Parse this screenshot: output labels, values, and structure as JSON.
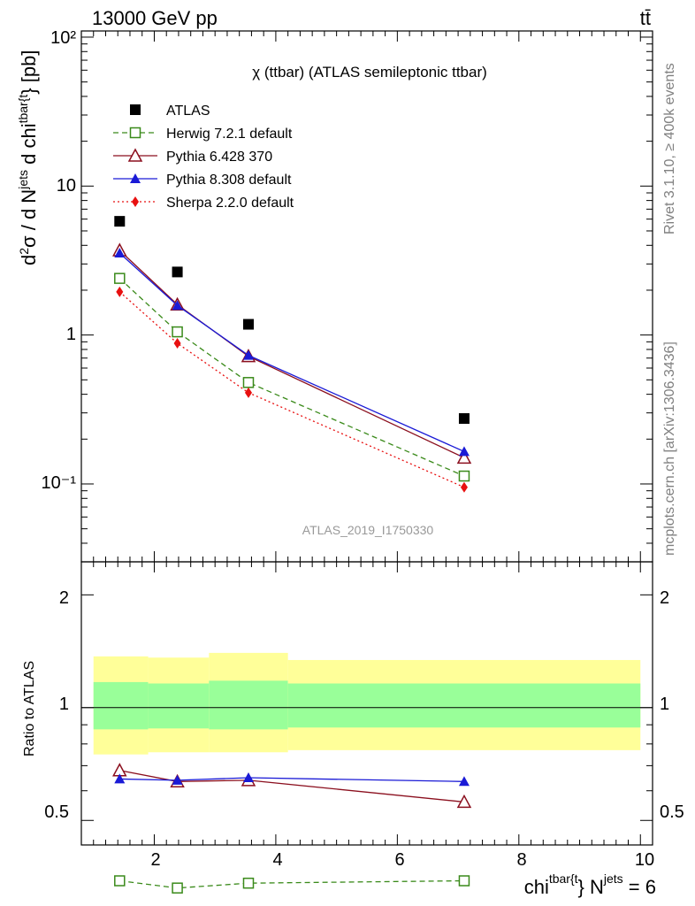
{
  "header": {
    "energy": "13000 GeV pp",
    "process": "tt̄"
  },
  "title": "χ (ttbar) (ATLAS semileptonic ttbar)",
  "watermark": "ATLAS_2019_I1750330",
  "side_labels": {
    "rivet": "Rivet 3.1.10, ≥ 400k events",
    "mcplots": "mcplots.cern.ch [arXiv:1306.3436]"
  },
  "axes": {
    "ylabel": "d²σ / d N^jets d chi^tbar{t} [pb]",
    "ylabel_parts": {
      "a": "d",
      "a_sup": "2",
      "b": "σ / d N",
      "b_sup": "jets",
      "c": " d chi",
      "c_sup": "tbar{t",
      "d": "} [pb]"
    },
    "ratio_ylabel": "Ratio to ATLAS",
    "xlabel": "chi^tbar{t} N^jets = 6",
    "xlabel_parts": {
      "a": "chi",
      "a_sup": "tbar{t",
      "b": "} N",
      "b_sup": "jets",
      "c": " = 6"
    },
    "y_tick_labels": [
      "10⁻¹",
      "1",
      "10",
      "10²"
    ],
    "ratio_tick_labels": [
      "0.5",
      "1",
      "2"
    ],
    "x_tick_labels": [
      "2",
      "4",
      "6",
      "8",
      "10"
    ]
  },
  "legend": [
    {
      "name": "ATLAS",
      "color": "#000000",
      "marker": "square-filled",
      "style": "none"
    },
    {
      "name": "Herwig 7.2.1 default",
      "color": "#3a8a1a",
      "marker": "square-open",
      "style": "dashed"
    },
    {
      "name": "Pythia 6.428 370",
      "color": "#8b0f1e",
      "marker": "triangle-open",
      "style": "solid"
    },
    {
      "name": "Pythia 8.308 default",
      "color": "#1a1ad6",
      "marker": "triangle-filled",
      "style": "solid"
    },
    {
      "name": "Sherpa 2.2.0 default",
      "color": "#e81010",
      "marker": "diamond-filled",
      "style": "dotted"
    }
  ],
  "chart_data": [
    {
      "type": "scatter",
      "panel": "main",
      "x": [
        1.43,
        2.38,
        3.55,
        7.1
      ],
      "yscale": "log",
      "ylim": [
        0.03,
        110
      ],
      "xlim": [
        0.8,
        10.2
      ],
      "series": [
        {
          "name": "ATLAS",
          "values": [
            5.8,
            2.65,
            1.18,
            0.275
          ]
        },
        {
          "name": "Herwig 7.2.1 default",
          "values": [
            2.4,
            1.05,
            0.48,
            0.113
          ]
        },
        {
          "name": "Pythia 6.428 370",
          "values": [
            3.7,
            1.6,
            0.72,
            0.15
          ]
        },
        {
          "name": "Pythia 8.308 default",
          "values": [
            3.55,
            1.58,
            0.73,
            0.165
          ]
        },
        {
          "name": "Sherpa 2.2.0 default",
          "values": [
            1.95,
            0.88,
            0.41,
            0.095
          ]
        }
      ]
    },
    {
      "type": "line",
      "panel": "ratio",
      "x": [
        1.43,
        2.38,
        3.55,
        7.1
      ],
      "yscale": "log",
      "ylim": [
        0.43,
        2.45
      ],
      "xlim": [
        0.8,
        10.2
      ],
      "bands": [
        {
          "x_edges": [
            1.0,
            1.9,
            2.9,
            4.2,
            10.0
          ],
          "yellow": [
            [
              0.75,
              1.37
            ],
            [
              0.76,
              1.36
            ],
            [
              0.76,
              1.4
            ],
            [
              0.77,
              1.34
            ]
          ],
          "green": [
            [
              0.875,
              1.17
            ],
            [
              0.88,
              1.16
            ],
            [
              0.875,
              1.18
            ],
            [
              0.885,
              1.16
            ]
          ]
        }
      ],
      "series": [
        {
          "name": "Herwig 7.2.1 default",
          "values": [
            0.345,
            0.33,
            0.34,
            0.345
          ]
        },
        {
          "name": "Pythia 6.428 370",
          "values": [
            0.68,
            0.635,
            0.64,
            0.56
          ]
        },
        {
          "name": "Pythia 8.308 default",
          "values": [
            0.645,
            0.64,
            0.65,
            0.635
          ]
        }
      ]
    }
  ]
}
